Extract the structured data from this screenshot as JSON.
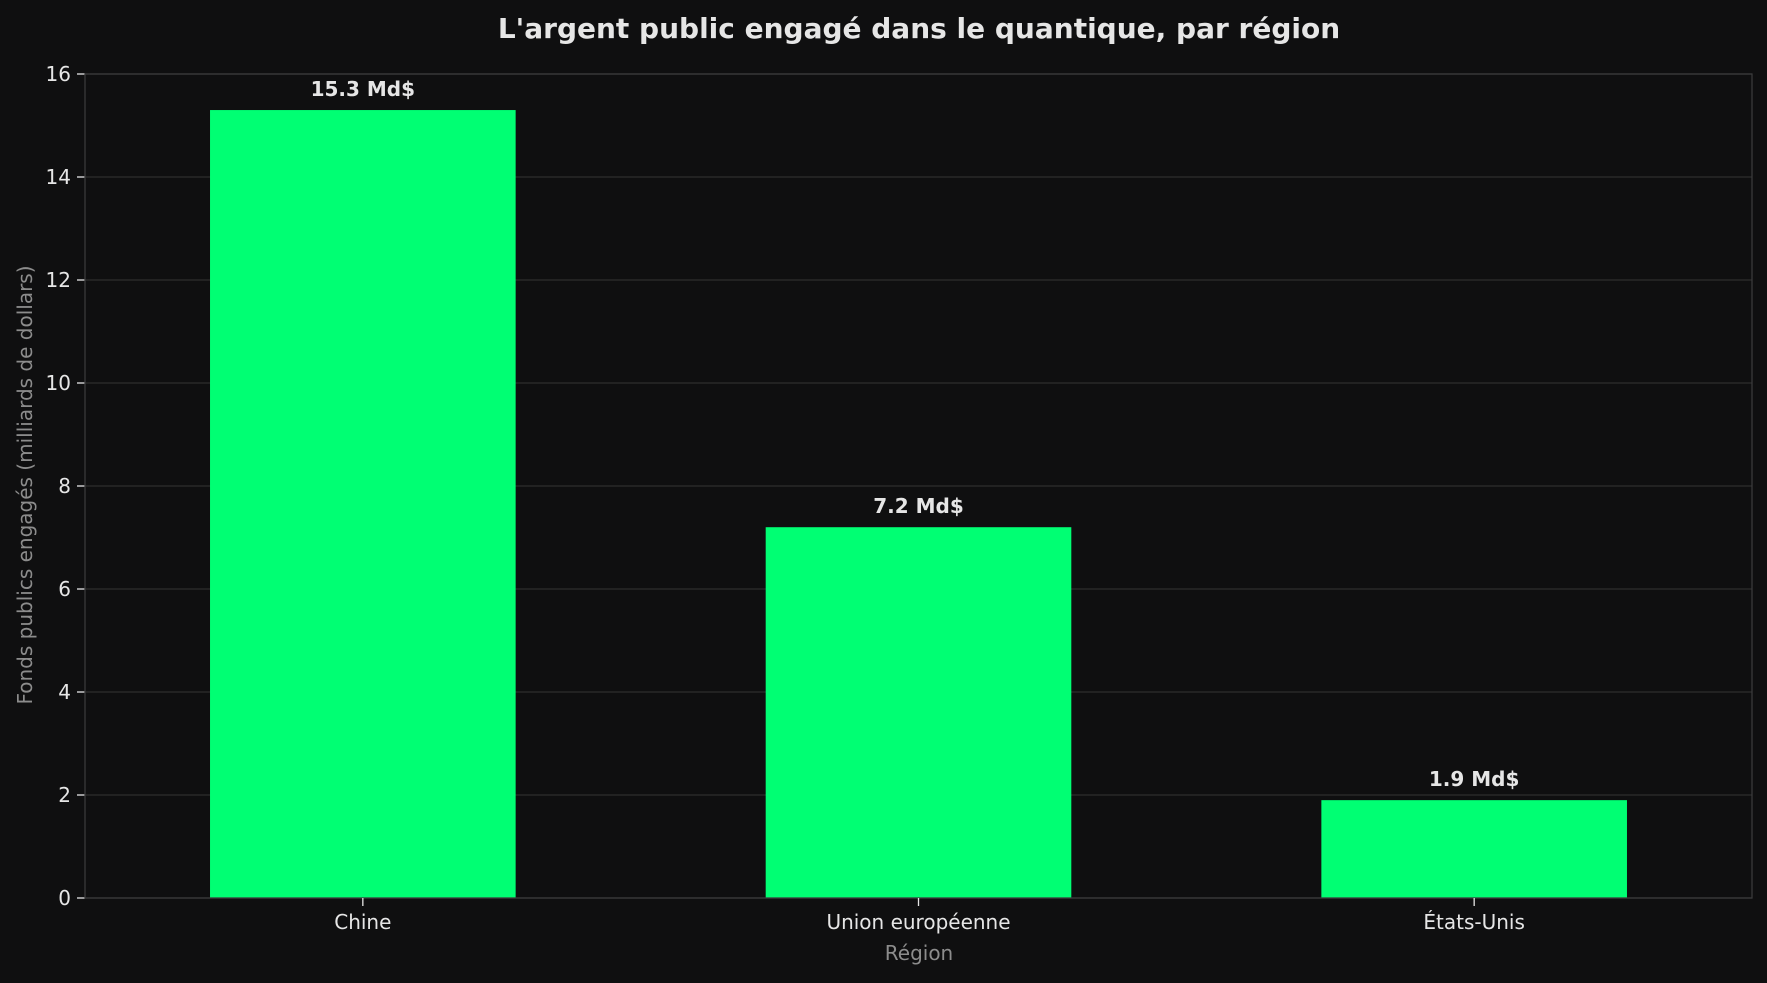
{
  "chart_data": {
    "type": "bar",
    "title": "L'argent public engagé dans le quantique, par région",
    "xlabel": "Région",
    "ylabel": "Fonds publics engagés (milliards de dollars)",
    "categories": [
      "Chine",
      "Union européenne",
      "États-Unis"
    ],
    "values": [
      15.3,
      7.2,
      1.9
    ],
    "data_labels": [
      "15.3 Md$",
      "7.2 Md$",
      "1.9 Md$"
    ],
    "ylim": [
      0,
      16
    ],
    "yticks": [
      0,
      2,
      4,
      6,
      8,
      10,
      12,
      14,
      16
    ],
    "grid": true,
    "legend": "none",
    "colors": {
      "bar": "#00ff73",
      "background": "#0f0f10",
      "grid": "#2e2e2e",
      "text": "#e6e6e6",
      "axis_label": "#8c8c8c"
    }
  }
}
